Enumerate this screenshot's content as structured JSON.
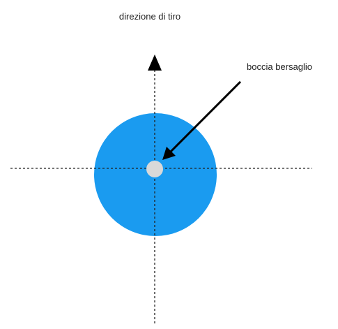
{
  "labels": {
    "direction": "direzione di tiro",
    "target": "boccia bersaglio"
  }
}
